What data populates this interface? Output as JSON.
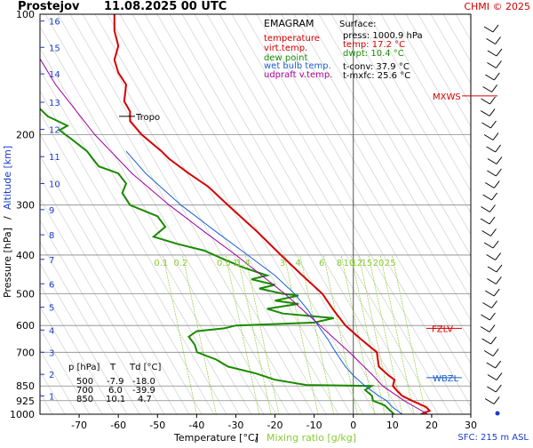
{
  "header": {
    "station": "Prostejov",
    "datetime": "11.08.2025 00 UTC",
    "copyright": "CHMI © 2025"
  },
  "chart_data": {
    "type": "line",
    "title": "EMAGRAM",
    "xlabel_temp": "Temperature [°C]",
    "xlabel_sep": "/",
    "xlabel_mix": "Mixing ratio [g/kg]",
    "ylabel_pressure": "Pressure [hPa]",
    "ylabel_sep": "/",
    "ylabel_alt": "Altitude [km]",
    "xlim": [
      -80,
      30
    ],
    "ylim": [
      1000,
      100
    ],
    "y_scale": "log",
    "pressure_ticks": [
      100,
      200,
      300,
      400,
      500,
      600,
      700,
      850,
      925,
      1000
    ],
    "temp_ticks": [
      -70,
      -60,
      -50,
      -40,
      -30,
      -20,
      -10,
      0,
      10,
      20,
      30
    ],
    "altitude_ticks": [
      {
        "km": 1,
        "p": 900
      },
      {
        "km": 2,
        "p": 795
      },
      {
        "km": 3,
        "p": 700
      },
      {
        "km": 4,
        "p": 616
      },
      {
        "km": 5,
        "p": 540
      },
      {
        "km": 6,
        "p": 472
      },
      {
        "km": 7,
        "p": 410
      },
      {
        "km": 8,
        "p": 356
      },
      {
        "km": 9,
        "p": 308
      },
      {
        "km": 10,
        "p": 265
      },
      {
        "km": 11,
        "p": 227
      },
      {
        "km": 12,
        "p": 194
      },
      {
        "km": 13,
        "p": 166
      },
      {
        "km": 14,
        "p": 141
      },
      {
        "km": 15,
        "p": 121
      },
      {
        "km": 16,
        "p": 104
      }
    ],
    "mixing_ratio_labels": [
      "0.1",
      "0.2",
      "0.5",
      "1",
      "1.4",
      "3",
      "4",
      "6",
      "8",
      "10",
      "12",
      "15",
      "20",
      "25"
    ],
    "legend": [
      {
        "label": "temperature",
        "color": "#d40000"
      },
      {
        "label": "virt.temp.",
        "color": "#d40000"
      },
      {
        "label": "dew point",
        "color": "#1a8a00"
      },
      {
        "label": "wet bulb temp.",
        "color": "#1a60d0"
      },
      {
        "label": "udpraft v.temp.",
        "color": "#a000a0"
      }
    ],
    "series": [
      {
        "name": "temperature",
        "color": "#d40000",
        "points": [
          [
            1000,
            17.2
          ],
          [
            980,
            19.5
          ],
          [
            960,
            18.6
          ],
          [
            925,
            15.0
          ],
          [
            900,
            12.5
          ],
          [
            870,
            11.0
          ],
          [
            850,
            10.1
          ],
          [
            820,
            10.5
          ],
          [
            800,
            9.0
          ],
          [
            760,
            6.5
          ],
          [
            700,
            6.0
          ],
          [
            650,
            2.0
          ],
          [
            600,
            -2.0
          ],
          [
            550,
            -5.0
          ],
          [
            500,
            -7.9
          ],
          [
            450,
            -13.0
          ],
          [
            400,
            -18.5
          ],
          [
            350,
            -24.5
          ],
          [
            300,
            -32.0
          ],
          [
            270,
            -37.0
          ],
          [
            250,
            -42.0
          ],
          [
            230,
            -47.0
          ],
          [
            220,
            -49.0
          ],
          [
            200,
            -54.0
          ],
          [
            185,
            -57.0
          ],
          [
            175,
            -57.0
          ],
          [
            165,
            -58.5
          ],
          [
            150,
            -58.0
          ],
          [
            140,
            -60.0
          ],
          [
            130,
            -61.0
          ],
          [
            120,
            -60.0
          ],
          [
            110,
            -61.0
          ],
          [
            100,
            -61.0
          ]
        ]
      },
      {
        "name": "dew point",
        "color": "#1a8a00",
        "points": [
          [
            1000,
            10.4
          ],
          [
            950,
            8.0
          ],
          [
            925,
            5.0
          ],
          [
            900,
            4.8
          ],
          [
            870,
            3.0
          ],
          [
            850,
            4.7
          ],
          [
            845,
            -12.0
          ],
          [
            820,
            -20.0
          ],
          [
            790,
            -25.0
          ],
          [
            760,
            -32.0
          ],
          [
            730,
            -35.0
          ],
          [
            700,
            -39.9
          ],
          [
            670,
            -40.5
          ],
          [
            640,
            -42.0
          ],
          [
            620,
            -40.0
          ],
          [
            610,
            -33.0
          ],
          [
            600,
            -30.0
          ],
          [
            590,
            -10.0
          ],
          [
            575,
            -5.0
          ],
          [
            560,
            -18.0
          ],
          [
            545,
            -22.0
          ],
          [
            530,
            -14.0
          ],
          [
            520,
            -20.0
          ],
          [
            505,
            -14.0
          ],
          [
            500,
            -18.0
          ],
          [
            485,
            -24.0
          ],
          [
            475,
            -20.0
          ],
          [
            460,
            -26.0
          ],
          [
            450,
            -22.0
          ],
          [
            430,
            -28.0
          ],
          [
            410,
            -33.0
          ],
          [
            390,
            -38.0
          ],
          [
            375,
            -45.0
          ],
          [
            360,
            -51.0
          ],
          [
            340,
            -48.0
          ],
          [
            320,
            -50.0
          ],
          [
            300,
            -57.0
          ],
          [
            280,
            -59.0
          ],
          [
            265,
            -58.0
          ],
          [
            250,
            -60.0
          ],
          [
            240,
            -65.0
          ],
          [
            220,
            -68.0
          ],
          [
            205,
            -72.0
          ],
          [
            195,
            -75.0
          ],
          [
            190,
            -73.0
          ],
          [
            180,
            -78.0
          ],
          [
            165,
            -82.0
          ],
          [
            150,
            -85.0
          ]
        ]
      },
      {
        "name": "wet bulb temp.",
        "color": "#1a60d0",
        "points": [
          [
            1000,
            12.5
          ],
          [
            960,
            10.0
          ],
          [
            925,
            8.5
          ],
          [
            900,
            6.5
          ],
          [
            850,
            3.0
          ],
          [
            800,
            0.0
          ],
          [
            760,
            -2.0
          ],
          [
            700,
            -4.5
          ],
          [
            650,
            -6.5
          ],
          [
            600,
            -9.0
          ],
          [
            550,
            -11.5
          ],
          [
            500,
            -15.0
          ],
          [
            450,
            -20.0
          ],
          [
            400,
            -27.0
          ],
          [
            350,
            -35.0
          ],
          [
            300,
            -44.0
          ],
          [
            250,
            -53.0
          ],
          [
            220,
            -58.0
          ]
        ]
      },
      {
        "name": "udpraft v.temp.",
        "color": "#a000a0",
        "points": [
          [
            1000,
            19.0
          ],
          [
            925,
            13.0
          ],
          [
            850,
            7.5
          ],
          [
            800,
            5.0
          ],
          [
            700,
            -1.0
          ],
          [
            600,
            -8.5
          ],
          [
            500,
            -17.5
          ],
          [
            400,
            -30.0
          ],
          [
            350,
            -38.0
          ],
          [
            300,
            -47.0
          ],
          [
            250,
            -56.5
          ],
          [
            200,
            -66.0
          ],
          [
            150,
            -76.0
          ],
          [
            120,
            -82.0
          ]
        ]
      }
    ],
    "surface": {
      "title": "Surface:",
      "press": "press: 1000.9 hPa",
      "temp": "temp: 17.2 °C",
      "dwpt": "dwpt: 10.4 °C",
      "tconv": "t-conv: 37.9 °C",
      "tmxfc": "t-mxfc: 25.6 °C"
    },
    "table": {
      "headers": [
        "p [hPa]",
        "T",
        "Td [°C]"
      ],
      "rows": [
        [
          "500",
          "-7.9",
          "-18.0"
        ],
        [
          "700",
          "6.0",
          "-39.9"
        ],
        [
          "850",
          "10.1",
          "4.7"
        ]
      ]
    },
    "tropopause": {
      "label": "Tropo",
      "p": 180
    },
    "levels": [
      {
        "label": "MXWS",
        "p": 160,
        "color": "#d40000"
      },
      {
        "label": "FZLV",
        "p": 610,
        "color": "#d40000"
      },
      {
        "label": "WBZL",
        "p": 810,
        "color": "#1a60d0"
      }
    ],
    "sfc_label": "SFC: 215 m ASL"
  }
}
